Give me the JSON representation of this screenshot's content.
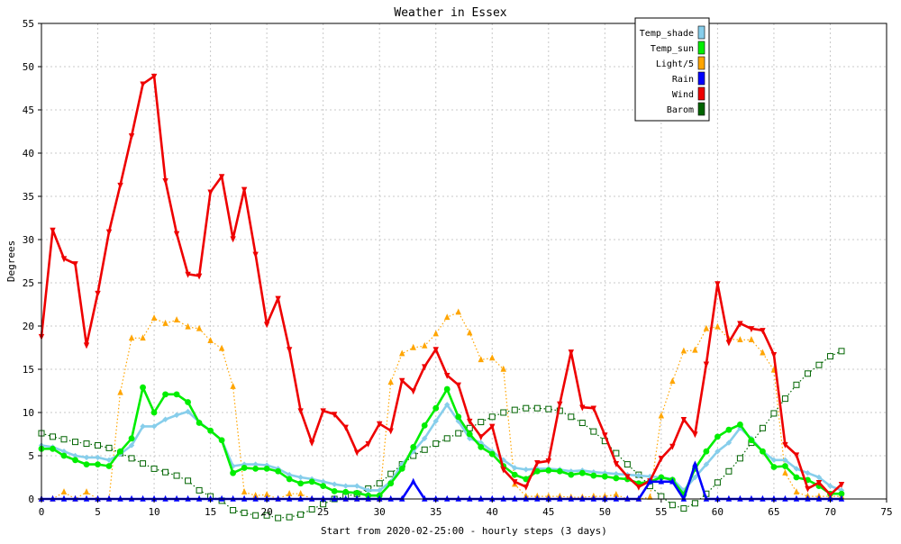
{
  "chart_data": {
    "type": "line",
    "title": "Weather in Essex",
    "xlabel": "Start from 2020-02-25:00 - hourly steps (3 days)",
    "ylabel": "Degrees",
    "xlim": [
      0,
      75
    ],
    "ylim": [
      0,
      55
    ],
    "x_ticks": [
      0,
      5,
      10,
      15,
      20,
      25,
      30,
      35,
      40,
      45,
      50,
      55,
      60,
      65,
      70,
      75
    ],
    "y_ticks": [
      0,
      5,
      10,
      15,
      20,
      25,
      30,
      35,
      40,
      45,
      50,
      55
    ],
    "grid": true,
    "legend_position": "top-right",
    "x": [
      0,
      1,
      2,
      3,
      4,
      5,
      6,
      7,
      8,
      9,
      10,
      11,
      12,
      13,
      14,
      15,
      16,
      17,
      18,
      19,
      20,
      21,
      22,
      23,
      24,
      25,
      26,
      27,
      28,
      29,
      30,
      31,
      32,
      33,
      34,
      35,
      36,
      37,
      38,
      39,
      40,
      41,
      42,
      43,
      44,
      45,
      46,
      47,
      48,
      49,
      50,
      51,
      52,
      53,
      54,
      55,
      56,
      57,
      58,
      59,
      60,
      61,
      62,
      63,
      64,
      65,
      66,
      67,
      68,
      69,
      70,
      71
    ],
    "series": [
      {
        "name": "Temp_shade",
        "color": "#87ceeb",
        "marker": "diamond",
        "dashed": false,
        "values": [
          6.2,
          6.0,
          5.5,
          5.0,
          4.8,
          4.8,
          4.5,
          5.2,
          6.2,
          8.4,
          8.4,
          9.2,
          9.7,
          10.1,
          8.9,
          7.9,
          6.8,
          3.8,
          4.0,
          4.0,
          3.9,
          3.5,
          2.8,
          2.5,
          2.3,
          2.0,
          1.7,
          1.5,
          1.5,
          1.0,
          1.0,
          2.0,
          4.0,
          5.5,
          7.0,
          9.0,
          10.9,
          9.0,
          7.0,
          6.5,
          5.5,
          4.5,
          3.6,
          3.4,
          3.5,
          3.5,
          3.4,
          3.2,
          3.3,
          3.1,
          3.0,
          2.9,
          2.8,
          2.7,
          2.6,
          2.5,
          2.3,
          1.0,
          2.5,
          4.0,
          5.5,
          6.5,
          8.2,
          7.0,
          5.5,
          4.5,
          4.5,
          3.5,
          3.0,
          2.5,
          1.5,
          1.0
        ]
      },
      {
        "name": "Temp_sun",
        "color": "#00ee00",
        "marker": "circle",
        "dashed": false,
        "values": [
          5.8,
          5.8,
          5.0,
          4.5,
          4.0,
          4.0,
          3.8,
          5.5,
          7.0,
          12.9,
          10.0,
          12.1,
          12.1,
          11.2,
          8.8,
          7.9,
          6.8,
          3.0,
          3.6,
          3.5,
          3.5,
          3.2,
          2.3,
          1.8,
          2.0,
          1.5,
          0.9,
          0.8,
          0.7,
          0.4,
          0.4,
          1.8,
          3.5,
          6.0,
          8.5,
          10.5,
          12.7,
          9.5,
          7.5,
          6.0,
          5.2,
          3.8,
          2.8,
          2.3,
          3.2,
          3.3,
          3.2,
          2.8,
          3.0,
          2.7,
          2.6,
          2.4,
          2.3,
          1.8,
          2.0,
          2.5,
          2.2,
          0.5,
          3.5,
          5.5,
          7.2,
          8.0,
          8.6,
          6.8,
          5.5,
          3.7,
          3.8,
          2.5,
          2.2,
          1.5,
          0.6,
          0.6
        ]
      },
      {
        "name": "Light/5",
        "color": "#ffa500",
        "marker": "triangle-up",
        "dashed": true,
        "values": [
          0,
          0,
          0.8,
          0,
          0.8,
          0,
          0,
          12.3,
          18.6,
          18.6,
          20.9,
          20.3,
          20.7,
          19.9,
          19.7,
          18.3,
          17.4,
          13.0,
          0.8,
          0.4,
          0.5,
          0,
          0.6,
          0.6,
          0,
          0,
          0,
          0,
          0,
          0,
          0,
          13.5,
          16.8,
          17.5,
          17.7,
          19.1,
          21.0,
          21.6,
          19.2,
          16.1,
          16.3,
          15.0,
          1.7,
          0.3,
          0.3,
          0.3,
          0.3,
          0.2,
          0.2,
          0.3,
          0.3,
          0.5,
          0,
          0,
          0.2,
          9.6,
          13.6,
          17.1,
          17.2,
          19.7,
          19.9,
          18.5,
          18.4,
          18.4,
          16.9,
          14.9,
          3.0,
          0.8,
          0.3,
          0.3,
          0.3,
          0.3
        ]
      },
      {
        "name": "Rain",
        "color": "#0000ff",
        "marker": "triangle-up",
        "dashed": false,
        "values": [
          0,
          0,
          0,
          0,
          0,
          0,
          0,
          0,
          0,
          0,
          0,
          0,
          0,
          0,
          0,
          0,
          0,
          0,
          0,
          0,
          0,
          0,
          0,
          0,
          0,
          0,
          0,
          0,
          0,
          0,
          0,
          0,
          0,
          2.0,
          0,
          0,
          0,
          0,
          0,
          0,
          0,
          0,
          0,
          0,
          0,
          0,
          0,
          0,
          0,
          0,
          0,
          0,
          0,
          0,
          2.0,
          2.0,
          2.0,
          0,
          4.0,
          0,
          0,
          0,
          0,
          0,
          0,
          0,
          0,
          0,
          0,
          0,
          0,
          0
        ]
      },
      {
        "name": "Wind",
        "color": "#ee0000",
        "marker": "triangle-down",
        "dashed": false,
        "values": [
          18.8,
          31.1,
          27.8,
          27.2,
          17.8,
          23.8,
          30.9,
          36.3,
          42.0,
          48.0,
          48.9,
          36.8,
          30.7,
          26.0,
          25.8,
          35.5,
          37.3,
          30.1,
          35.8,
          28.3,
          20.2,
          23.2,
          17.3,
          10.2,
          6.5,
          10.2,
          9.8,
          8.3,
          5.4,
          6.4,
          8.7,
          7.9,
          13.7,
          12.5,
          15.3,
          17.3,
          14.3,
          13.2,
          9.0,
          7.2,
          8.4,
          3.4,
          2.0,
          1.4,
          4.2,
          4.4,
          11.0,
          17.0,
          10.6,
          10.5,
          7.4,
          4.1,
          2.6,
          1.4,
          2.1,
          4.7,
          6.1,
          9.2,
          7.5,
          15.6,
          24.9,
          18.1,
          20.3,
          19.7,
          19.5,
          16.7,
          6.3,
          5.1,
          1.2,
          1.9,
          0.5,
          1.7
        ]
      },
      {
        "name": "Barom",
        "color": "#006400",
        "marker": "square",
        "dashed": true,
        "values": [
          7.6,
          7.2,
          6.9,
          6.6,
          6.4,
          6.2,
          5.9,
          5.3,
          4.7,
          4.1,
          3.5,
          3.1,
          2.7,
          2.1,
          1.0,
          0.3,
          -0.2,
          -1.3,
          -1.6,
          -1.9,
          -1.9,
          -2.2,
          -2.1,
          -1.8,
          -1.2,
          -0.6,
          0.0,
          0.3,
          0.6,
          1.2,
          1.8,
          2.9,
          4.0,
          5.0,
          5.7,
          6.4,
          7.0,
          7.6,
          8.2,
          8.9,
          9.5,
          10.0,
          10.3,
          10.5,
          10.5,
          10.4,
          10.2,
          9.5,
          8.8,
          7.8,
          6.7,
          5.3,
          4.0,
          2.8,
          1.5,
          0.3,
          -0.7,
          -1.1,
          -0.5,
          0.6,
          1.9,
          3.2,
          4.7,
          6.5,
          8.2,
          9.9,
          11.6,
          13.2,
          14.5,
          15.5,
          16.5,
          17.1
        ]
      }
    ]
  }
}
